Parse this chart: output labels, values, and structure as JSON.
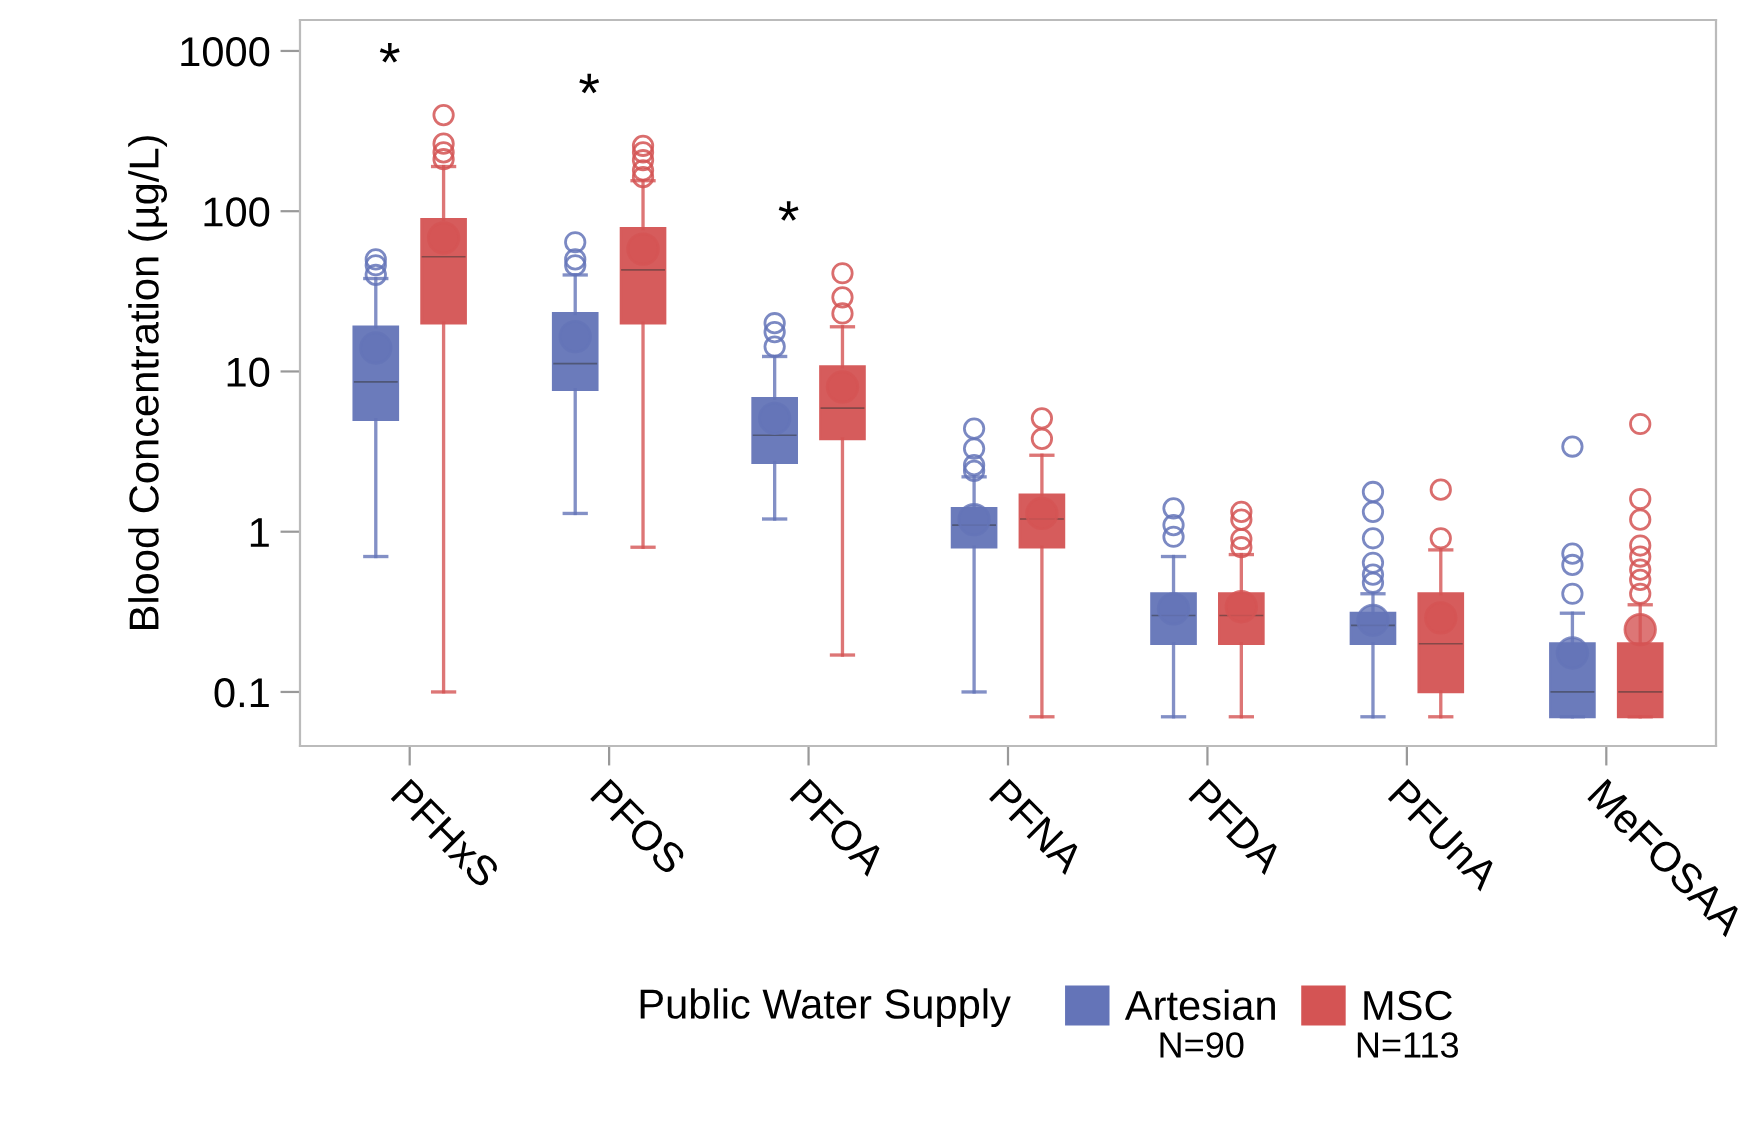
{
  "chart_data": {
    "type": "box",
    "ylabel": "Blood Concentration (µg/L)",
    "legend_title": "Public Water Supply",
    "categories": [
      "PFHxS",
      "PFOS",
      "PFOA",
      "PFNA",
      "PFDA",
      "PFUnA",
      "MeFOSAA"
    ],
    "log": "y",
    "ylim": [
      0.046,
      1560
    ],
    "yticks": [
      0.1,
      1,
      10,
      100,
      1000
    ],
    "grid": false,
    "legend": "bottom",
    "marker": "circle",
    "series": [
      {
        "name": "Artesian",
        "color": "#6474b8",
        "boxes": [
          {
            "low": 0.7,
            "q1": 5.0,
            "median": 8.6,
            "q3": 19,
            "high": 38,
            "mean": 14,
            "outliers": [
              40,
              46,
              50
            ]
          },
          {
            "low": 1.3,
            "q1": 7.7,
            "median": 11.2,
            "q3": 23,
            "high": 40,
            "mean": 16.5,
            "outliers": [
              46,
              50,
              64
            ]
          },
          {
            "low": 1.2,
            "q1": 2.7,
            "median": 4.0,
            "q3": 6.8,
            "high": 12.4,
            "mean": 5.1,
            "outliers": [
              14.3,
              17.6,
              20
            ]
          },
          {
            "low": 0.1,
            "q1": 0.8,
            "median": 1.1,
            "q3": 1.4,
            "high": 2.2,
            "mean": 1.19,
            "outliers": [
              2.4,
              2.6,
              3.3,
              4.4
            ]
          },
          {
            "low": 0.07,
            "q1": 0.2,
            "median": 0.3,
            "q3": 0.41,
            "high": 0.7,
            "mean": 0.33,
            "outliers": [
              0.93,
              1.1,
              1.4
            ]
          },
          {
            "low": 0.07,
            "q1": 0.2,
            "median": 0.26,
            "q3": 0.31,
            "high": 0.41,
            "mean": 0.28,
            "outliers": [
              0.48,
              0.54,
              0.64,
              0.91,
              1.33,
              1.77
            ]
          },
          {
            "low": 0.07,
            "q1": 0.07,
            "median": 0.1,
            "q3": 0.2,
            "high": 0.31,
            "mean": 0.175,
            "outliers": [
              0.41,
              0.62,
              0.73,
              3.4
            ]
          }
        ]
      },
      {
        "name": "MSC",
        "color": "#d45454",
        "boxes": [
          {
            "low": 0.1,
            "q1": 20,
            "median": 52,
            "q3": 89,
            "high": 190,
            "mean": 68,
            "outliers": [
              211,
              233,
              264,
              398
            ]
          },
          {
            "low": 0.8,
            "q1": 20,
            "median": 43,
            "q3": 78,
            "high": 155,
            "mean": 58,
            "outliers": [
              163,
              180,
              208,
              233,
              256
            ]
          },
          {
            "low": 0.17,
            "q1": 3.8,
            "median": 5.9,
            "q3": 10.7,
            "high": 19,
            "mean": 8.0,
            "outliers": [
              23,
              29,
              41
            ]
          },
          {
            "low": 0.07,
            "q1": 0.8,
            "median": 1.2,
            "q3": 1.7,
            "high": 3.0,
            "mean": 1.3,
            "outliers": [
              3.8,
              5.1
            ]
          },
          {
            "low": 0.07,
            "q1": 0.2,
            "median": 0.3,
            "q3": 0.41,
            "high": 0.72,
            "mean": 0.34,
            "outliers": [
              0.8,
              0.9,
              1.19,
              1.33
            ]
          },
          {
            "low": 0.07,
            "q1": 0.1,
            "median": 0.2,
            "q3": 0.41,
            "high": 0.77,
            "mean": 0.29,
            "outliers": [
              0.91,
              1.83
            ]
          },
          {
            "low": 0.07,
            "q1": 0.07,
            "median": 0.1,
            "q3": 0.2,
            "high": 0.35,
            "mean": 0.245,
            "outliers": [
              0.41,
              0.5,
              0.58,
              0.7,
              0.82,
              1.19,
              1.6,
              4.7
            ]
          }
        ]
      }
    ],
    "annotations": [
      "*",
      "*",
      "*",
      "N=90",
      "N=113"
    ]
  }
}
